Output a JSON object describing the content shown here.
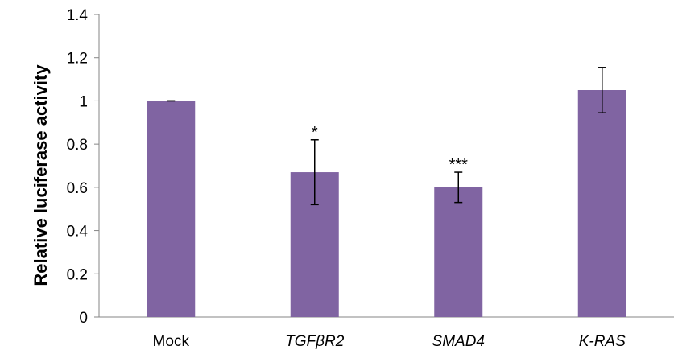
{
  "chart_data": {
    "type": "bar",
    "categories": [
      "Mock",
      "TGFβR2",
      "SMAD4",
      "K-RAS"
    ],
    "italic_categories": [
      false,
      true,
      true,
      true
    ],
    "values": [
      1.0,
      0.67,
      0.6,
      1.05
    ],
    "error": [
      0.0,
      0.15,
      0.07,
      0.105
    ],
    "significance": [
      "",
      "*",
      "***",
      ""
    ],
    "ylabel": "Relative luciferase activity",
    "xlabel": "",
    "title": "",
    "ylim": [
      0,
      1.4
    ],
    "yticks": [
      0,
      0.2,
      0.4,
      0.6,
      0.8,
      1,
      1.2,
      1.4
    ],
    "ytick_labels": [
      "0",
      "0.2",
      "0.4",
      "0.6",
      "0.8",
      "1",
      "1.2",
      "1.4"
    ],
    "bar_color": "#8064a2",
    "grid": false,
    "legend": "none"
  }
}
